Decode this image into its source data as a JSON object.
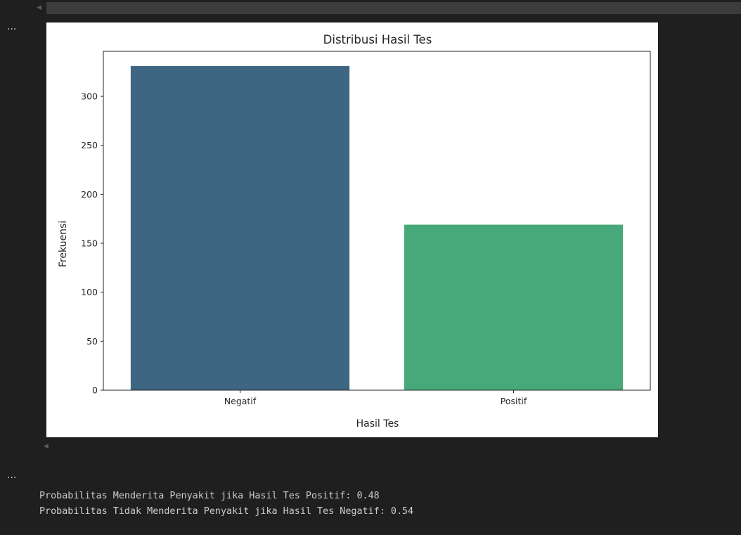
{
  "cell1": {
    "more_actions": "..."
  },
  "cell2": {
    "more_actions": "..."
  },
  "chart_data": {
    "type": "bar",
    "title": "Distribusi Hasil Tes",
    "xlabel": "Hasil Tes",
    "ylabel": "Frekuensi",
    "categories": [
      "Negatif",
      "Positif"
    ],
    "values": [
      331,
      169
    ],
    "colors": [
      "#3e6683",
      "#47a97a"
    ],
    "ylim": [
      0,
      346
    ],
    "yticks": [
      0,
      50,
      100,
      150,
      200,
      250,
      300
    ],
    "grid": false,
    "legend": "none"
  },
  "output": {
    "lines": [
      "Probabilitas Menderita Penyakit jika Hasil Tes Positif: 0.48",
      "Probabilitas Tidak Menderita Penyakit jika Hasil Tes Negatif: 0.54"
    ]
  }
}
